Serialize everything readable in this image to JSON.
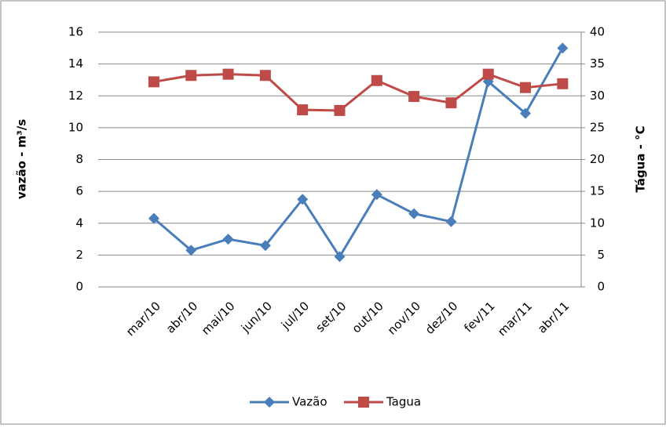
{
  "chart_data": {
    "type": "line",
    "categories": [
      null,
      "mar/10",
      "abr/10",
      "mai/10",
      "jun/10",
      "jul/10",
      "set/10",
      "out/10",
      "nov/10",
      "dez/10",
      "fev/11",
      "mar/11",
      "abr/11"
    ],
    "series": [
      {
        "name": "Vazão",
        "color": "#4a7ebb",
        "marker": "diamond",
        "values": [
          null,
          4.3,
          2.3,
          3.0,
          2.6,
          5.5,
          1.9,
          5.8,
          4.6,
          4.1,
          12.9,
          10.9,
          15.0
        ]
      },
      {
        "name": "Tagua",
        "color": "#be4b48",
        "marker": "square",
        "axis": "y2",
        "values": [
          null,
          32.2,
          33.2,
          33.4,
          33.2,
          27.8,
          27.7,
          32.4,
          29.9,
          28.9,
          33.4,
          31.3,
          31.9
        ]
      }
    ],
    "ylabel": "vazão - m³/s",
    "y2label": "Tágua - °C",
    "ylim": [
      0,
      16
    ],
    "yticks": [
      0,
      2,
      4,
      6,
      8,
      10,
      12,
      14,
      16
    ],
    "y2lim": [
      0,
      40
    ],
    "y2ticks": [
      0,
      5,
      10,
      15,
      20,
      25,
      30,
      35,
      40
    ],
    "grid": true,
    "legend": "bottom"
  }
}
